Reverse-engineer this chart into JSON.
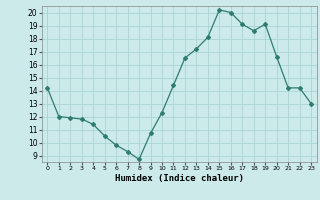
{
  "x": [
    0,
    1,
    2,
    3,
    4,
    5,
    6,
    7,
    8,
    9,
    10,
    11,
    12,
    13,
    14,
    15,
    16,
    17,
    18,
    19,
    20,
    21,
    22,
    23
  ],
  "y": [
    14.2,
    12.0,
    11.9,
    11.8,
    11.4,
    10.5,
    9.8,
    9.3,
    8.7,
    10.7,
    12.3,
    14.4,
    16.5,
    17.2,
    18.1,
    20.2,
    20.0,
    19.1,
    18.6,
    19.1,
    16.6,
    14.2,
    14.2,
    13.0
  ],
  "line_color": "#2e7d6e",
  "marker": "D",
  "marker_size": 2.0,
  "bg_color": "#cceaea",
  "grid_color": "#aad4d4",
  "xlabel": "Humidex (Indice chaleur)",
  "xlim": [
    -0.5,
    23.5
  ],
  "ylim": [
    8.5,
    20.5
  ],
  "xticks": [
    0,
    1,
    2,
    3,
    4,
    5,
    6,
    7,
    8,
    9,
    10,
    11,
    12,
    13,
    14,
    15,
    16,
    17,
    18,
    19,
    20,
    21,
    22,
    23
  ],
  "yticks": [
    9,
    10,
    11,
    12,
    13,
    14,
    15,
    16,
    17,
    18,
    19,
    20
  ]
}
